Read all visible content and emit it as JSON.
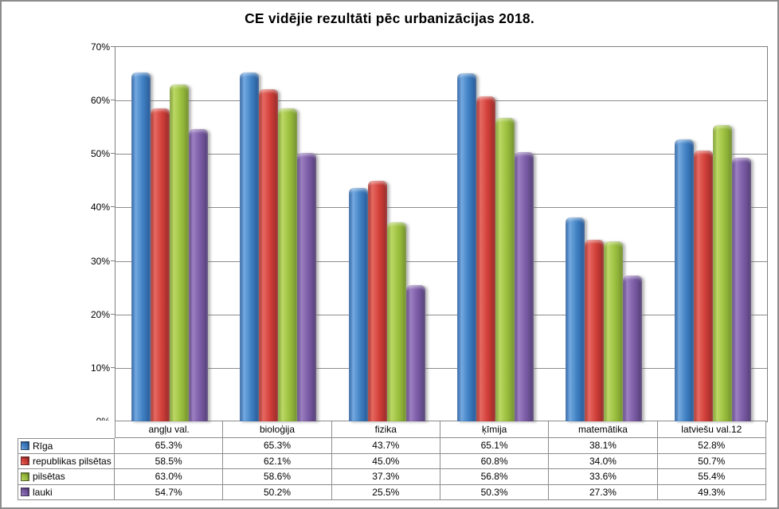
{
  "window": {
    "background": "#ffffff",
    "border_color": "#8c8c8c"
  },
  "chart_data": {
    "type": "bar",
    "title": "CE vidējie rezultāti pēc urbanizācijas 2018.",
    "xlabel": "",
    "ylabel": "",
    "categories": [
      "angļu val.",
      "bioloģija",
      "fizika",
      "ķīmija",
      "matemātika",
      "latviešu val.12"
    ],
    "series": [
      {
        "name": "Rīga",
        "values": [
          65.3,
          65.3,
          43.7,
          65.1,
          38.1,
          52.8
        ],
        "color": "#4182c4",
        "color_light": "#74a9e0",
        "color_dark": "#285c9c"
      },
      {
        "name": "republikas pilsētas",
        "values": [
          58.5,
          62.1,
          45.0,
          60.8,
          34.0,
          50.7
        ],
        "color": "#d2403a",
        "color_light": "#e66a62",
        "color_dark": "#9c2b28"
      },
      {
        "name": "pilsētas",
        "values": [
          63.0,
          58.6,
          37.3,
          56.8,
          33.6,
          55.4
        ],
        "color": "#9cc03f",
        "color_light": "#bcd866",
        "color_dark": "#78982e"
      },
      {
        "name": "lauki",
        "values": [
          54.7,
          50.2,
          25.5,
          50.3,
          27.3,
          49.3
        ],
        "color": "#7b5ca6",
        "color_light": "#9d80c2",
        "color_dark": "#57417b"
      }
    ],
    "ylim": [
      0,
      70
    ],
    "ytick_step": 10,
    "ytick_suffix": "%",
    "value_suffix": "%",
    "value_decimals": 1,
    "grid": true,
    "legend_position": "data-table-left",
    "gridline_color": "#8c8c8c",
    "axis_color": "#808080"
  }
}
